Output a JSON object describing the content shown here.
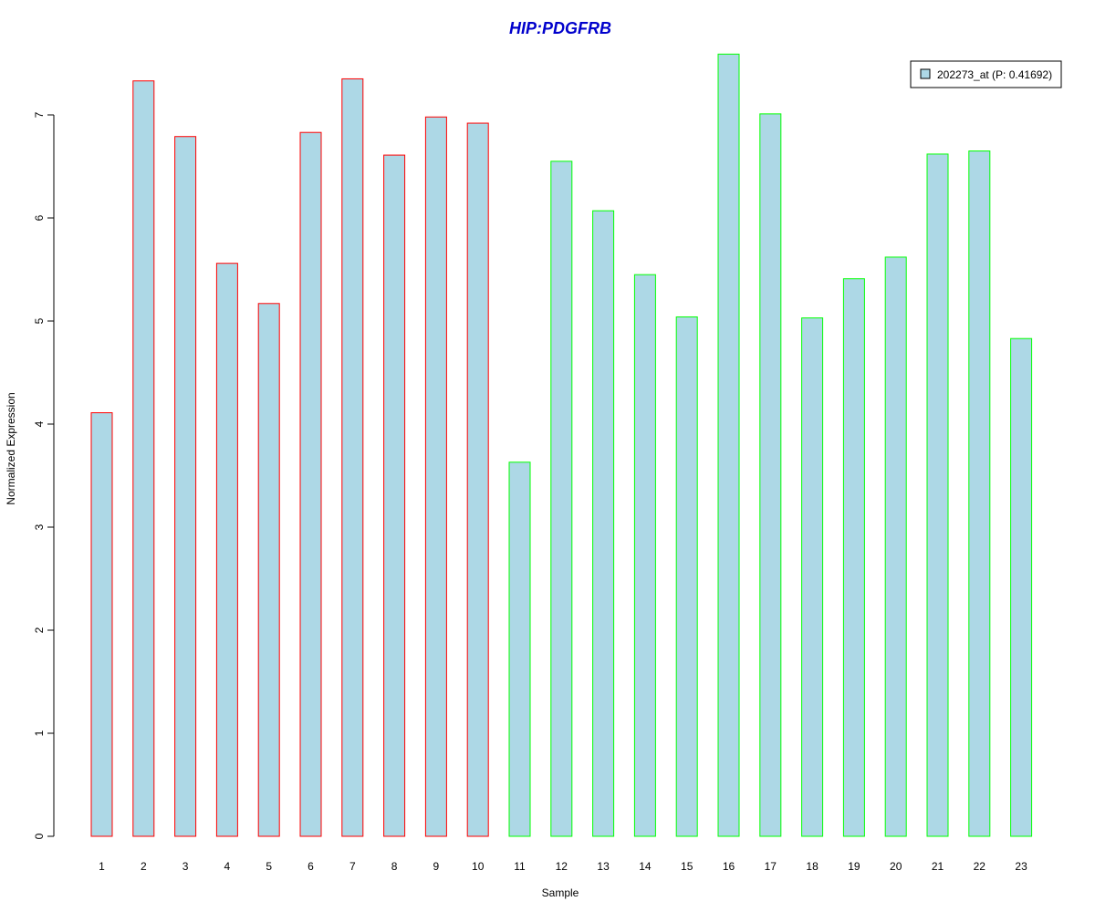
{
  "colors": {
    "bar_fill": "#add8e6",
    "group_1_border": "#ff0000",
    "group_2_border": "#00ff00",
    "title": "#0000cc",
    "axis": "#000000",
    "legend_border": "#000000"
  },
  "chart_data": {
    "type": "bar",
    "title": "HIP:PDGFRB",
    "xlabel": "Sample",
    "ylabel": "Normalized Expression",
    "ylim": [
      0,
      7.6
    ],
    "yticks": [
      0,
      1,
      2,
      3,
      4,
      5,
      6,
      7
    ],
    "grid": false,
    "legend": {
      "position": "top-right",
      "entries": [
        "202273_at (P: 0.41692)"
      ]
    },
    "categories": [
      "1",
      "2",
      "3",
      "4",
      "5",
      "6",
      "7",
      "8",
      "9",
      "10",
      "11",
      "12",
      "13",
      "14",
      "15",
      "16",
      "17",
      "18",
      "19",
      "20",
      "21",
      "22",
      "23"
    ],
    "series": [
      {
        "name": "202273_at (P: 0.41692)",
        "values": [
          4.11,
          7.33,
          6.79,
          5.56,
          5.17,
          6.83,
          7.35,
          6.61,
          6.98,
          6.92,
          3.63,
          6.55,
          6.07,
          5.45,
          5.04,
          7.59,
          7.01,
          5.03,
          5.41,
          5.62,
          6.62,
          6.65,
          4.83
        ],
        "border_groups": [
          "group_1",
          "group_1",
          "group_1",
          "group_1",
          "group_1",
          "group_1",
          "group_1",
          "group_1",
          "group_1",
          "group_1",
          "group_2",
          "group_2",
          "group_2",
          "group_2",
          "group_2",
          "group_2",
          "group_2",
          "group_2",
          "group_2",
          "group_2",
          "group_2",
          "group_2",
          "group_2"
        ]
      }
    ]
  }
}
